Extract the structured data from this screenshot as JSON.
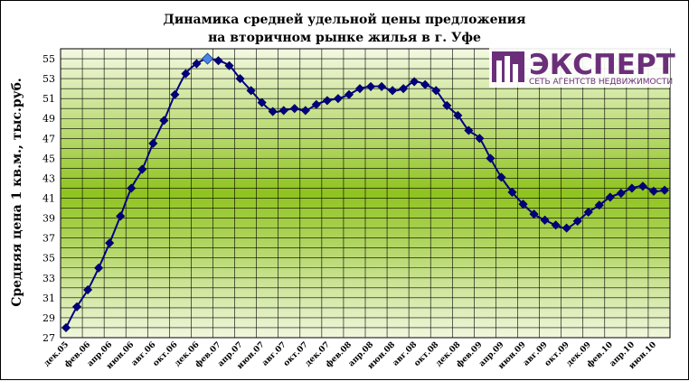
{
  "chart_data": {
    "type": "line",
    "title": "Динамика средней удельной цены предложения",
    "subtitle": "на вторичном рынке жилья в г. Уфе",
    "ylabel": "Средняя цена 1 кв.м., тыс.руб.",
    "xlabel": "",
    "ylim": [
      27,
      56
    ],
    "yticks": [
      27,
      29,
      31,
      33,
      35,
      37,
      39,
      41,
      43,
      45,
      47,
      49,
      51,
      53,
      55
    ],
    "grid": true,
    "legend": "none",
    "x_tick_labels": [
      "дек.05",
      "фев.06",
      "апр.06",
      "июн.06",
      "авг.06",
      "окт.06",
      "дек.06",
      "фев.07",
      "апр.07",
      "июн.07",
      "авг.07",
      "окт.07",
      "дек.07",
      "фев.08",
      "апр.08",
      "июн.08",
      "авг.08",
      "окт.08",
      "дек.08",
      "фев.09",
      "апр.09",
      "июн.09",
      "авг.09",
      "окт.09",
      "дек.09",
      "фев.10",
      "апр.10",
      "июн.10"
    ],
    "x": [
      "дек.05",
      "янв.06",
      "фев.06",
      "мар.06",
      "апр.06",
      "май.06",
      "июн.06",
      "июл.06",
      "авг.06",
      "сен.06",
      "окт.06",
      "ноя.06",
      "дек.06",
      "янв.07",
      "фев.07",
      "мар.07",
      "апр.07",
      "май.07",
      "июн.07",
      "июл.07",
      "авг.07",
      "сен.07",
      "окт.07",
      "ноя.07",
      "дек.07",
      "янв.08",
      "фев.08",
      "мар.08",
      "апр.08",
      "май.08",
      "июн.08",
      "июл.08",
      "авг.08",
      "сен.08",
      "окт.08",
      "ноя.08",
      "дек.08",
      "янв.09",
      "фев.09",
      "мар.09",
      "апр.09",
      "май.09",
      "июн.09",
      "июл.09",
      "авг.09",
      "сен.09",
      "окт.09",
      "ноя.09",
      "дек.09",
      "янв.10",
      "фев.10",
      "мар.10",
      "апр.10",
      "май.10",
      "июн.10",
      "июл.10"
    ],
    "series": [
      {
        "values": [
          28.0,
          30.1,
          31.8,
          34.0,
          36.5,
          39.2,
          42.0,
          43.9,
          46.5,
          48.8,
          51.4,
          53.5,
          54.5,
          55.0,
          54.8,
          54.3,
          53.0,
          51.8,
          50.6,
          49.7,
          49.8,
          50.0,
          49.8,
          50.4,
          50.8,
          51.0,
          51.4,
          52.0,
          52.2,
          52.2,
          51.8,
          52.0,
          52.7,
          52.4,
          51.8,
          50.3,
          49.3,
          47.8,
          47.0,
          45.0,
          43.1,
          41.6,
          40.4,
          39.4,
          38.8,
          38.3,
          38.0,
          38.7,
          39.6,
          40.3,
          41.1,
          41.5,
          42.0,
          42.2,
          41.7,
          41.8
        ]
      }
    ],
    "highlight_point": "янв.07",
    "colors": {
      "line": "#000080",
      "marker": "#000080",
      "highlight_marker": "#4a86e8",
      "grid": "#000000",
      "plot_top": "#f0f7dc",
      "plot_mid": "#8fc31f",
      "plot_bottom": "#eef6d8"
    }
  },
  "logo": {
    "name": "ЭКСПЕРТ",
    "tagline": "СЕТЬ АГЕНТСТВ НЕДВИЖИМОСТИ",
    "color": "#6b2f7a"
  }
}
